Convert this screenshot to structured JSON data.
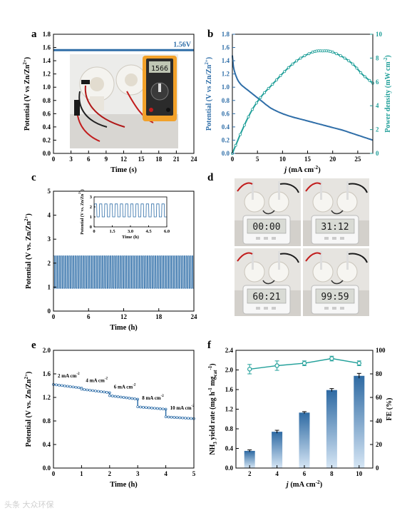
{
  "chart_data": [
    {
      "panel": "a",
      "type": "line",
      "xlabel": "Time (s)",
      "ylabel": "Potential (V vs Zn/Zn2+)",
      "xlim": [
        0,
        24
      ],
      "ylim": [
        0,
        1.8
      ],
      "xticks": [
        0,
        3,
        6,
        9,
        12,
        15,
        18,
        21,
        24
      ],
      "yticks": [
        0.0,
        0.2,
        0.4,
        0.6,
        0.8,
        1.0,
        1.2,
        1.4,
        1.6,
        1.8
      ],
      "series": [
        {
          "x": [
            0,
            24
          ],
          "y": [
            1.56,
            1.56
          ],
          "color": "#2f6ea8"
        }
      ],
      "annotation": "1.56V"
    },
    {
      "panel": "b",
      "type": "line",
      "xlabel": "j (mA cm-2)",
      "ylabel": "Potential (V vs Zn/Zn2+)",
      "y2label": "Power density (mW cm-2)",
      "xlim": [
        0,
        28
      ],
      "ylim": [
        0,
        1.8
      ],
      "y2lim": [
        0,
        10
      ],
      "xticks": [
        0,
        5,
        10,
        15,
        20,
        25
      ],
      "yticks": [
        0.0,
        0.2,
        0.4,
        0.6,
        0.8,
        1.0,
        1.2,
        1.4,
        1.6,
        1.8
      ],
      "y2ticks": [
        0,
        2,
        4,
        6,
        8,
        10
      ],
      "series": [
        {
          "axis": "left",
          "color": "#2f6ea8",
          "x": [
            0,
            0.2,
            0.5,
            1,
            1.5,
            2,
            3,
            4,
            5,
            6,
            7,
            8,
            10,
            12,
            14,
            16,
            18,
            20,
            22,
            24,
            26,
            28
          ],
          "y": [
            1.48,
            1.32,
            1.22,
            1.12,
            1.06,
            1.02,
            0.96,
            0.9,
            0.84,
            0.78,
            0.72,
            0.67,
            0.6,
            0.55,
            0.51,
            0.47,
            0.43,
            0.39,
            0.35,
            0.3,
            0.25,
            0.2
          ]
        },
        {
          "axis": "right",
          "color": "#22a09a",
          "x": [
            0,
            2,
            4,
            6,
            8,
            10,
            12,
            14,
            16,
            17,
            18,
            19,
            20,
            22,
            24,
            26,
            28
          ],
          "y": [
            0,
            2.0,
            3.7,
            4.9,
            5.8,
            6.7,
            7.5,
            8.1,
            8.5,
            8.6,
            8.6,
            8.6,
            8.5,
            8.1,
            7.5,
            6.6,
            5.9
          ]
        }
      ]
    },
    {
      "panel": "c",
      "type": "line",
      "xlabel": "Time (h)",
      "ylabel": "Potential (V vs. Zn/Zn2+)",
      "xlim": [
        0,
        24
      ],
      "ylim": [
        0,
        5
      ],
      "xticks": [
        0,
        6,
        12,
        18,
        24
      ],
      "yticks": [
        0,
        1,
        2,
        3,
        4,
        5
      ],
      "cycle": {
        "high": 2.3,
        "low": 0.95,
        "count": 72
      },
      "inset": {
        "xlabel": "Time (h)",
        "ylabel": "Potential (V vs. Zn/Zn2+)",
        "xlim": [
          0,
          6
        ],
        "ylim": [
          0,
          3
        ],
        "xticks": [
          0,
          1.5,
          3.0,
          4.5,
          6.0
        ],
        "xtick_labels": [
          "0",
          "1.5",
          "3.0",
          "4.5",
          "6.0"
        ],
        "yticks": [
          0,
          1,
          2,
          3
        ],
        "cycle": {
          "high": 2.3,
          "low": 1.0,
          "count": 14
        }
      }
    },
    {
      "panel": "e",
      "type": "line",
      "xlabel": "Time (h)",
      "ylabel": "Potential (V vs. Zn/Zn2+)",
      "xlim": [
        0,
        5
      ],
      "ylim": [
        0,
        2.0
      ],
      "xticks": [
        0,
        1,
        2,
        3,
        4,
        5
      ],
      "yticks": [
        0.0,
        0.4,
        0.8,
        1.2,
        1.6,
        2.0
      ],
      "segments": [
        {
          "label": "2 mA cm-2",
          "start": [
            0,
            1.42
          ],
          "end": [
            1,
            1.36
          ]
        },
        {
          "label": "4 mA cm-2",
          "start": [
            1,
            1.34
          ],
          "end": [
            2,
            1.28
          ]
        },
        {
          "label": "6 mA cm-2",
          "start": [
            2,
            1.23
          ],
          "end": [
            3,
            1.17
          ]
        },
        {
          "label": "8 mA cm-2",
          "start": [
            3,
            1.04
          ],
          "end": [
            4,
            1.0
          ]
        },
        {
          "label": "10 mA cm-2",
          "start": [
            4,
            0.87
          ],
          "end": [
            5,
            0.84
          ]
        }
      ]
    },
    {
      "panel": "f",
      "type": "bar",
      "xlabel": "j (mA cm-2)",
      "ylabel": "NH3 yield rate (mg h-1 mgcat-1)",
      "y2label": "FE (%)",
      "categories": [
        "2",
        "4",
        "6",
        "8",
        "10"
      ],
      "ylim": [
        0,
        2.4
      ],
      "y2lim": [
        0,
        100
      ],
      "yticks": [
        0.0,
        0.4,
        0.8,
        1.2,
        1.6,
        2.0,
        2.4
      ],
      "y2ticks": [
        0,
        20,
        40,
        60,
        80,
        100
      ],
      "values": [
        0.35,
        0.74,
        1.13,
        1.59,
        1.88
      ],
      "errors": [
        0.02,
        0.03,
        0.02,
        0.03,
        0.05
      ],
      "fe_values": [
        84,
        87,
        89,
        93,
        89
      ],
      "fe_errors": [
        4,
        4,
        2,
        2,
        2
      ]
    }
  ],
  "labels": {
    "panel_a": "a",
    "panel_b": "b",
    "panel_c": "c",
    "panel_d": "d",
    "panel_e": "e",
    "panel_f": "f",
    "a_annotation": "1.56V",
    "meter_reading": "1566",
    "timer_readings": [
      "00:00",
      "31:12",
      "60:21",
      "99:59"
    ]
  },
  "colors": {
    "blue": "#2f6ea8",
    "teal": "#22a09a",
    "bar_dark": "#2e6aa3",
    "bar_light": "#cfe1f2"
  },
  "watermark": "头条 大众环保"
}
